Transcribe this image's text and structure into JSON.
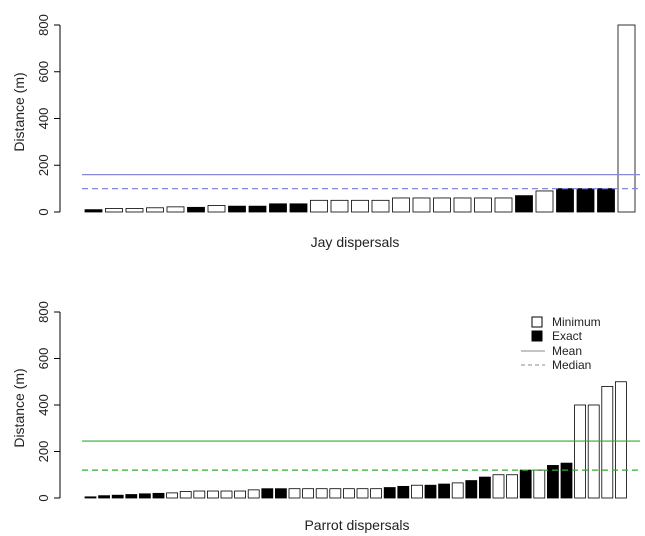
{
  "chart_data": [
    {
      "type": "bar",
      "xlabel": "Jay dispersals",
      "ylabel": "Distance (m)",
      "ylim": [
        0,
        800
      ],
      "yticks": [
        0,
        200,
        400,
        600,
        800
      ],
      "grid": false,
      "values": [
        10,
        15,
        15,
        18,
        22,
        20,
        28,
        25,
        25,
        35,
        35,
        50,
        50,
        50,
        50,
        60,
        60,
        60,
        60,
        60,
        60,
        70,
        90,
        100,
        100,
        100,
        800
      ],
      "exact": [
        true,
        false,
        false,
        false,
        false,
        true,
        false,
        true,
        true,
        true,
        true,
        false,
        false,
        false,
        false,
        false,
        false,
        false,
        false,
        false,
        false,
        true,
        false,
        true,
        true,
        true,
        false
      ],
      "mean": 160,
      "median": 100,
      "line_color": "#8888dd"
    },
    {
      "type": "bar",
      "xlabel": "Parrot dispersals",
      "ylabel": "Distance (m)",
      "ylim": [
        0,
        800
      ],
      "yticks": [
        0,
        200,
        400,
        600,
        800
      ],
      "grid": false,
      "values": [
        5,
        10,
        12,
        15,
        18,
        20,
        22,
        28,
        30,
        30,
        30,
        30,
        35,
        40,
        40,
        40,
        40,
        40,
        40,
        40,
        40,
        40,
        45,
        50,
        55,
        55,
        60,
        65,
        75,
        90,
        100,
        100,
        120,
        120,
        140,
        150,
        400,
        400,
        480,
        500
      ],
      "exact": [
        true,
        true,
        true,
        true,
        true,
        true,
        false,
        false,
        false,
        false,
        false,
        false,
        false,
        true,
        true,
        false,
        false,
        false,
        false,
        false,
        false,
        false,
        true,
        true,
        false,
        true,
        true,
        false,
        true,
        true,
        false,
        false,
        true,
        false,
        true,
        true,
        false,
        false,
        false,
        false
      ],
      "mean": 245,
      "median": 120,
      "line_color": "#33aa33"
    }
  ],
  "legend": {
    "position": "top-right",
    "minimum_label": "Minimum",
    "exact_label": "Exact",
    "mean_label": "Mean",
    "median_label": "Median"
  }
}
